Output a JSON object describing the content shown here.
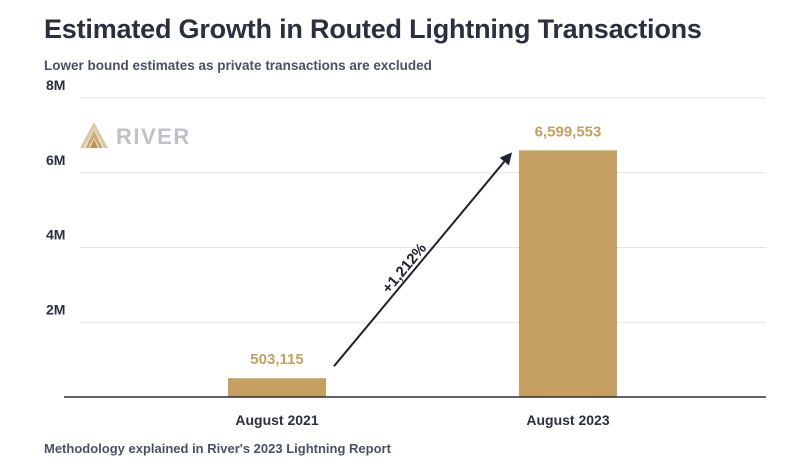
{
  "chart_data": {
    "type": "bar",
    "title": "Estimated Growth in Routed Lightning Transactions",
    "subtitle": "Lower bound estimates as private transactions are excluded",
    "footer": "Methodology explained in River's 2023 Lightning Report",
    "categories": [
      "August 2021",
      "August 2023"
    ],
    "values": [
      503115,
      6599553
    ],
    "data_labels": [
      "503,115",
      "6,599,553"
    ],
    "y_ticks": [
      {
        "value": 2000000,
        "label": "2M"
      },
      {
        "value": 4000000,
        "label": "4M"
      },
      {
        "value": 6000000,
        "label": "6M"
      },
      {
        "value": 8000000,
        "label": "8M"
      }
    ],
    "ylim": [
      0,
      8000000
    ],
    "grid": true,
    "annotation": "+1,212%",
    "xlabel": "",
    "ylabel": ""
  },
  "logo": {
    "text": "RIVER",
    "icon": "river-mountain-logo-icon"
  },
  "colors": {
    "bar": "#c4a062",
    "data_label": "#c4a062",
    "grid": "#e3e4e8",
    "axis": "#2b2f3f",
    "text": "#2b2f3f",
    "logo": "#bfc1c7"
  }
}
